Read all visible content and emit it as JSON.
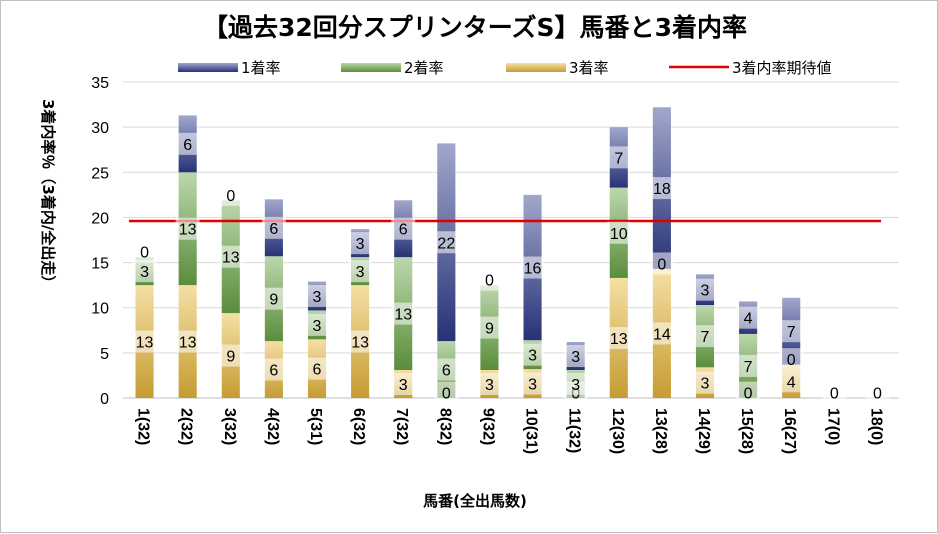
{
  "chart_data": {
    "type": "bar",
    "stacked": true,
    "title": "【過去32回分スプリンターズS】馬番と3着内率",
    "xlabel": "馬番(全出馬数)",
    "ylabel": "3着内率％（3着内/全出走）",
    "ylim": [
      0,
      35
    ],
    "yticks": [
      "0",
      "5",
      "10",
      "15",
      "20",
      "25",
      "30",
      "35"
    ],
    "grid": true,
    "legend_position": "top",
    "categories": [
      "1(32)",
      "2(32)",
      "3(32)",
      "4(32)",
      "5(31)",
      "6(32)",
      "7(32)",
      "8(32)",
      "9(32)",
      "10(31)",
      "11(32)",
      "12(30)",
      "13(28)",
      "14(29)",
      "15(28)",
      "16(27)",
      "17(0)",
      "18(0)"
    ],
    "series": [
      {
        "name": "3着率",
        "color": "#e8b838",
        "values": [
          12.5,
          12.5,
          9.4,
          6.3,
          6.5,
          12.5,
          3.1,
          0,
          3.1,
          3.2,
          0,
          13.3,
          14.3,
          3.4,
          0,
          3.7,
          0,
          0
        ],
        "labels": [
          "13",
          "13",
          "9",
          "6",
          "6",
          "13",
          "3",
          "0",
          "3",
          "3",
          "0",
          "13",
          "14",
          "3",
          "0",
          "4",
          "0",
          "0"
        ]
      },
      {
        "name": "2着率",
        "color": "#6aa646",
        "values": [
          3.1,
          12.5,
          12.5,
          9.4,
          3.2,
          3.1,
          12.5,
          6.3,
          9.4,
          3.2,
          3.1,
          10.0,
          0,
          6.9,
          7.1,
          0,
          0,
          0
        ],
        "labels": [
          "3",
          "13",
          "13",
          "9",
          "3",
          "3",
          "13",
          "6",
          "9",
          "3",
          "3",
          "10",
          "0",
          "7",
          "7",
          "0",
          "",
          ""
        ]
      },
      {
        "name": "1着率",
        "color": "#2e3b8c",
        "values": [
          0,
          6.3,
          0,
          6.3,
          3.2,
          3.1,
          6.3,
          21.9,
          0,
          16.1,
          3.1,
          6.7,
          17.9,
          3.4,
          3.6,
          7.4,
          0,
          0
        ],
        "labels": [
          "0",
          "6",
          "0",
          "6",
          "3",
          "3",
          "6",
          "22",
          "0",
          "16",
          "3",
          "7",
          "18",
          "3",
          "4",
          "7",
          "",
          ""
        ]
      }
    ],
    "reference_line": {
      "name": "3着内率期待値",
      "value": 19.6,
      "color": "#e00000"
    }
  }
}
